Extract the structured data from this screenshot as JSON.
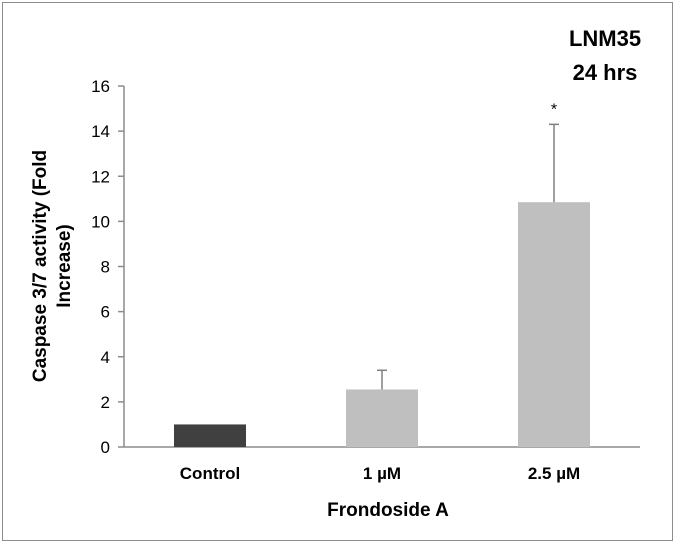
{
  "chart_data": {
    "type": "bar",
    "annotation_lines": [
      "LNM35",
      "24 hrs"
    ],
    "xlabel": "Frondoside A",
    "ylabel_lines": [
      "Caspase 3/7 activity (Fold",
      "Increase)"
    ],
    "categories": [
      "Control",
      "1 µM",
      "2.5 µM"
    ],
    "values": [
      1.0,
      2.55,
      10.85
    ],
    "errors": [
      0,
      0.85,
      3.45
    ],
    "significance": [
      "",
      "",
      "*"
    ],
    "bar_colors": [
      "#404040",
      "#bfbfbf",
      "#bfbfbf"
    ],
    "ylim": [
      0,
      16
    ],
    "yticks": [
      0,
      2,
      4,
      6,
      8,
      10,
      12,
      14,
      16
    ],
    "grid": false,
    "legend": "none"
  }
}
